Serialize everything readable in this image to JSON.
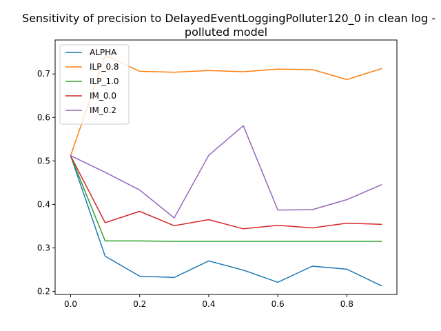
{
  "chart_data": {
    "type": "line",
    "title_lines": [
      "Sensitivity of precision to DelayedEventLoggingPolluter120_0 in clean log -",
      "polluted model"
    ],
    "xlabel": "",
    "ylabel": "",
    "x": [
      0.0,
      0.1,
      0.2,
      0.3,
      0.4,
      0.5,
      0.6,
      0.7,
      0.8,
      0.9
    ],
    "xlim": [
      -0.045,
      0.945
    ],
    "ylim": [
      0.193,
      0.778
    ],
    "xticks": [
      0.0,
      0.2,
      0.4,
      0.6,
      0.8
    ],
    "xtick_labels": [
      "0.0",
      "0.2",
      "0.4",
      "0.6",
      "0.8"
    ],
    "yticks": [
      0.2,
      0.3,
      0.4,
      0.5,
      0.6,
      0.7
    ],
    "ytick_labels": [
      "0.2",
      "0.3",
      "0.4",
      "0.5",
      "0.6",
      "0.7"
    ],
    "grid": false,
    "legend_position": "top-left",
    "series": [
      {
        "name": "ALPHA",
        "color": "#1f77b4",
        "values": [
          0.512,
          0.281,
          0.235,
          0.232,
          0.27,
          0.249,
          0.221,
          0.258,
          0.251,
          0.213
        ]
      },
      {
        "name": "ILP_0.8",
        "color": "#ff7f0e",
        "values": [
          0.512,
          0.743,
          0.706,
          0.704,
          0.708,
          0.705,
          0.711,
          0.71,
          0.687,
          0.712
        ]
      },
      {
        "name": "ILP_1.0",
        "color": "#2ca02c",
        "values": [
          0.512,
          0.316,
          0.316,
          0.315,
          0.315,
          0.315,
          0.315,
          0.315,
          0.315,
          0.315
        ]
      },
      {
        "name": "IM_0.0",
        "color": "#d62728",
        "values": [
          0.512,
          0.358,
          0.384,
          0.351,
          0.365,
          0.344,
          0.352,
          0.346,
          0.357,
          0.354
        ]
      },
      {
        "name": "IM_0.2",
        "color": "#9467bd",
        "values": [
          0.512,
          0.474,
          0.433,
          0.369,
          0.513,
          0.581,
          0.387,
          0.388,
          0.411,
          0.445
        ]
      }
    ]
  }
}
